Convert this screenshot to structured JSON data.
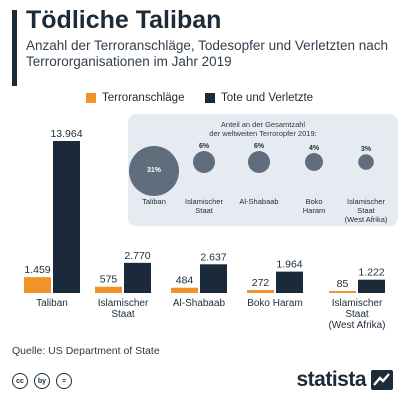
{
  "header": {
    "title": "Tödliche Taliban",
    "subtitle": "Anzahl der Terroranschläge, Todesopfer und Verletzten nach Terrororganisationen im Jahr 2019"
  },
  "colors": {
    "attacks": "#f0932b",
    "casualties": "#1a2a3b",
    "accent": "#1d2a3a",
    "bubble": "#5f6d7c",
    "inset_bg": "#e6ebf1"
  },
  "chart_data": [
    {
      "type": "bar",
      "categories": [
        "Taliban",
        "Islamischer Staat",
        "Al-Shabaab",
        "Boko Haram",
        "Islamischer Staat (West Afrika)"
      ],
      "category_lines": [
        [
          "Taliban"
        ],
        [
          "Islamischer",
          "Staat"
        ],
        [
          "Al-Shabaab"
        ],
        [
          "Boko Haram"
        ],
        [
          "Islamischer",
          "Staat",
          "(West Afrika)"
        ]
      ],
      "series": [
        {
          "name": "Terroranschläge",
          "values": [
            1459,
            575,
            484,
            272,
            85
          ],
          "labels": [
            "1.459",
            "575",
            "484",
            "272",
            "85"
          ]
        },
        {
          "name": "Tote und Verletzte",
          "values": [
            13964,
            2770,
            2637,
            1964,
            1222
          ],
          "labels": [
            "13.964",
            "2.770",
            "2.637",
            "1.964",
            "1.222"
          ]
        }
      ],
      "ylim": [
        0,
        13964
      ],
      "legend": "top-center"
    },
    {
      "type": "bubble",
      "title": "Anteil an der Gesamtzahl der weltweiten Terroropfer 2019:",
      "categories": [
        "Taliban",
        "Islamischer Staat",
        "Al-Shabaab",
        "Boko Haram",
        "Islamischer Staat (West Afrika)"
      ],
      "category_lines": [
        [
          "Taliban"
        ],
        [
          "Islamischer",
          "Staat"
        ],
        [
          "Al-Shabaab"
        ],
        [
          "Boko",
          "Haram"
        ],
        [
          "Islamischer",
          "Staat",
          "(West Afrika)"
        ]
      ],
      "values": [
        31,
        6,
        6,
        4,
        3
      ],
      "labels": [
        "31%",
        "6%",
        "6%",
        "4%",
        "3%"
      ]
    }
  ],
  "footer": {
    "source": "Quelle: US Department of State",
    "license_icons": [
      "cc",
      "by",
      "="
    ],
    "brand": "statista"
  }
}
